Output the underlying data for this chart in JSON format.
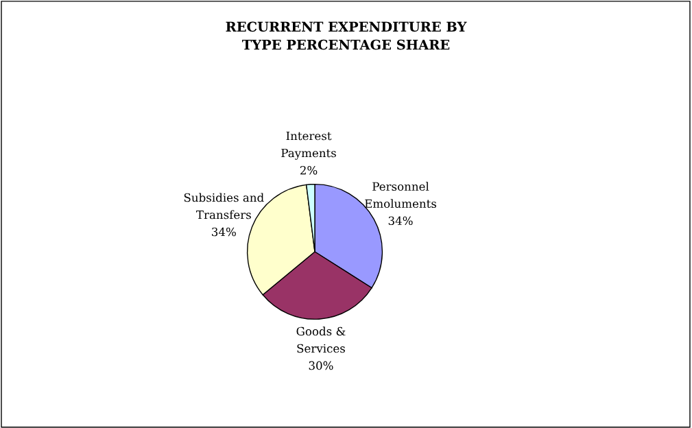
{
  "chart_data": {
    "type": "pie",
    "title": "RECURRENT EXPENDITURE BY\nTYPE PERCENTAGE SHARE",
    "categories": [
      "Personnel\nEmoluments",
      "Goods &\nServices",
      "Subsidies and\nTransfers",
      "Interest\nPayments"
    ],
    "values": [
      34,
      30,
      34,
      2
    ],
    "colors": [
      "#9999ff",
      "#993366",
      "#ffffcc",
      "#ccffff"
    ],
    "value_labels": [
      "34%",
      "30%",
      "34%",
      "2%"
    ]
  }
}
